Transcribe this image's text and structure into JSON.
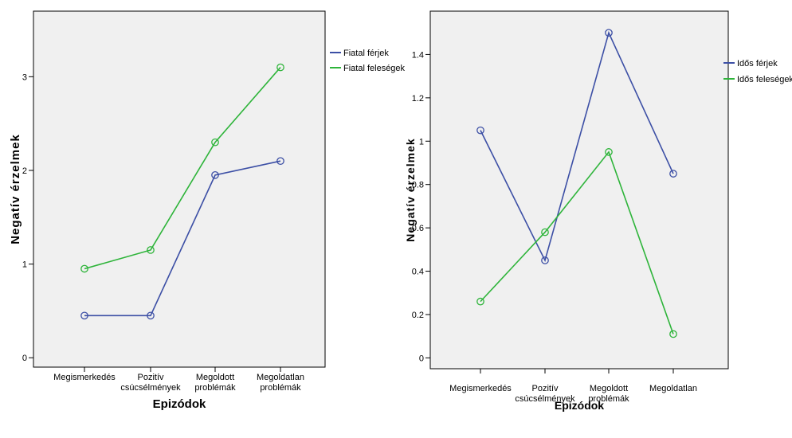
{
  "chart_data": [
    {
      "type": "line",
      "title": "",
      "xlabel": "Epizódok",
      "ylabel": "Negatív érzelmek",
      "categories": [
        [
          "Megismerkedés"
        ],
        [
          "Pozitív",
          "csúcsélmények"
        ],
        [
          "Megoldott",
          "problémák"
        ],
        [
          "Megoldatlan",
          "problémák"
        ]
      ],
      "ylim": [
        -0.1,
        3.7
      ],
      "yticks": [
        0,
        1,
        2,
        3
      ],
      "grid": false,
      "legend_position": "right",
      "series": [
        {
          "name": "Fiatal férjek",
          "color": "#3c4fa5",
          "values": [
            0.45,
            0.45,
            1.95,
            2.1
          ]
        },
        {
          "name": "Fiatal feleségek",
          "color": "#2eb43a",
          "values": [
            0.95,
            1.15,
            2.3,
            3.1
          ]
        }
      ]
    },
    {
      "type": "line",
      "title": "",
      "xlabel": "Epizódok",
      "ylabel": "Negatív érzelmek",
      "categories": [
        [
          "Megismerkedés"
        ],
        [
          "Pozitív",
          "csúcsélmények"
        ],
        [
          "Megoldott",
          "problémák"
        ],
        [
          "Megoldatlan"
        ]
      ],
      "ylim": [
        -0.05,
        1.6
      ],
      "yticks": [
        0,
        0.2,
        0.4,
        0.6,
        0.8,
        1,
        1.2,
        1.4
      ],
      "grid": false,
      "legend_position": "right",
      "series": [
        {
          "name": "Idős férjek",
          "color": "#3c4fa5",
          "values": [
            1.05,
            0.45,
            1.5,
            0.85
          ]
        },
        {
          "name": "Idős feleségek",
          "color": "#2eb43a",
          "values": [
            0.26,
            0.58,
            0.95,
            0.11
          ]
        }
      ]
    }
  ]
}
